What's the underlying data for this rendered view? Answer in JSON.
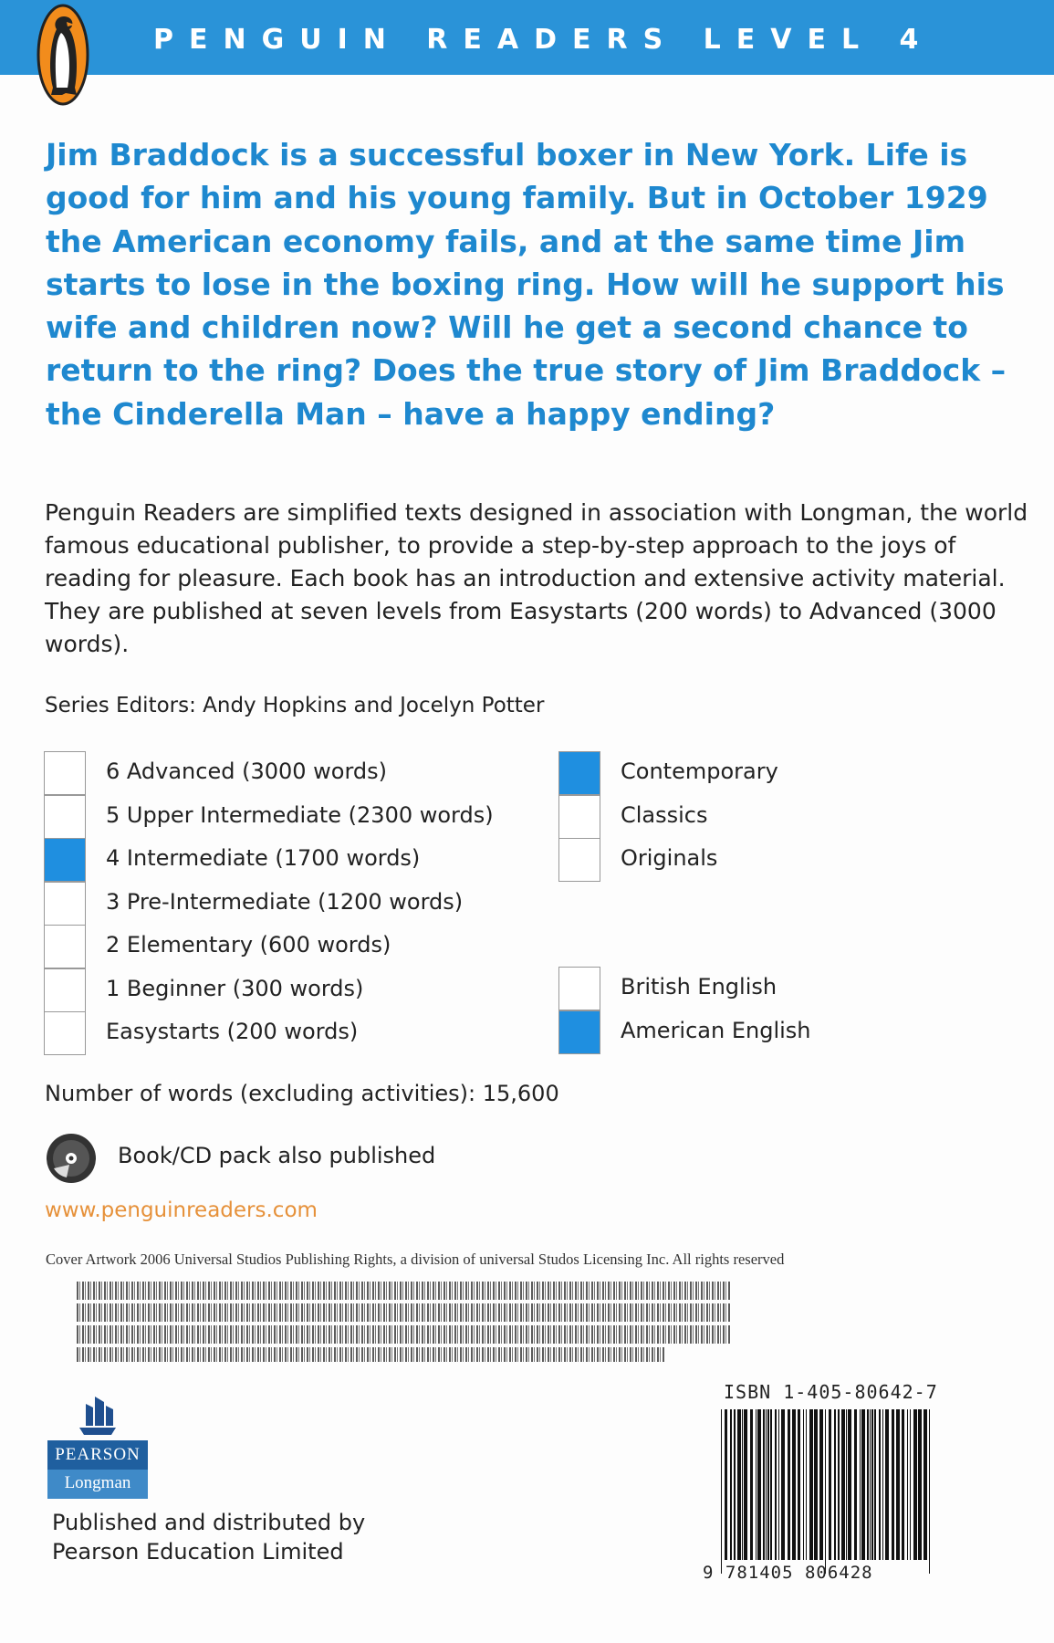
{
  "header": {
    "title": "PENGUIN READERS LEVEL 4",
    "brand_color": "#2a93d8",
    "logo": "penguin-logo"
  },
  "blurb": "Jim Braddock is a successful boxer in New York. Life is good for him and his young family. But in October 1929 the American economy fails, and at the same time Jim starts to lose in the boxing ring. How will he support his wife and children now? Will he get a second chance to return to the ring? Does the true story of Jim Braddock – the Cinderella Man – have a happy ending?",
  "description": "Penguin Readers are simplified texts designed in association with Longman, the world famous educational publisher, to provide a step-by-step approach to the joys of reading for pleasure. Each book has an introduction and extensive activity material. They are published at seven levels from Easystarts (200 words) to Advanced (3000 words).",
  "editors": "Series Editors: Andy Hopkins and Jocelyn Potter",
  "levels": [
    {
      "label": "6 Advanced (3000 words)",
      "checked": false
    },
    {
      "label": "5 Upper Intermediate (2300 words)",
      "checked": false
    },
    {
      "label": "4 Intermediate (1700 words)",
      "checked": true
    },
    {
      "label": "3 Pre-Intermediate (1200 words)",
      "checked": false
    },
    {
      "label": "2 Elementary (600 words)",
      "checked": false
    },
    {
      "label": "1 Beginner (300 words)",
      "checked": false
    },
    {
      "label": "Easystarts (200 words)",
      "checked": false
    }
  ],
  "types": [
    {
      "label": "Contemporary",
      "checked": true
    },
    {
      "label": "Classics",
      "checked": false
    },
    {
      "label": "Originals",
      "checked": false
    }
  ],
  "english": [
    {
      "label": "British English",
      "checked": false
    },
    {
      "label": "American English",
      "checked": true
    }
  ],
  "word_count": "Number of words (excluding activities): 15,600",
  "cd_text": "Book/CD pack also published",
  "url": "www.penguinreaders.com",
  "cover_credit": "Cover Artwork 2006 Universal Studios Publishing Rights, a division of universal Studos Licensing Inc. All rights reserved",
  "isbn": "ISBN 1-405-80642-7",
  "barcode_number": "9 781405 806428",
  "publisher_logo": {
    "top": "PEARSON",
    "bottom": "Longman"
  },
  "published_by": [
    "Published and distributed by",
    "Pearson Education Limited"
  ],
  "check_color": "#1f8fe0",
  "url_color": "#e6913a"
}
